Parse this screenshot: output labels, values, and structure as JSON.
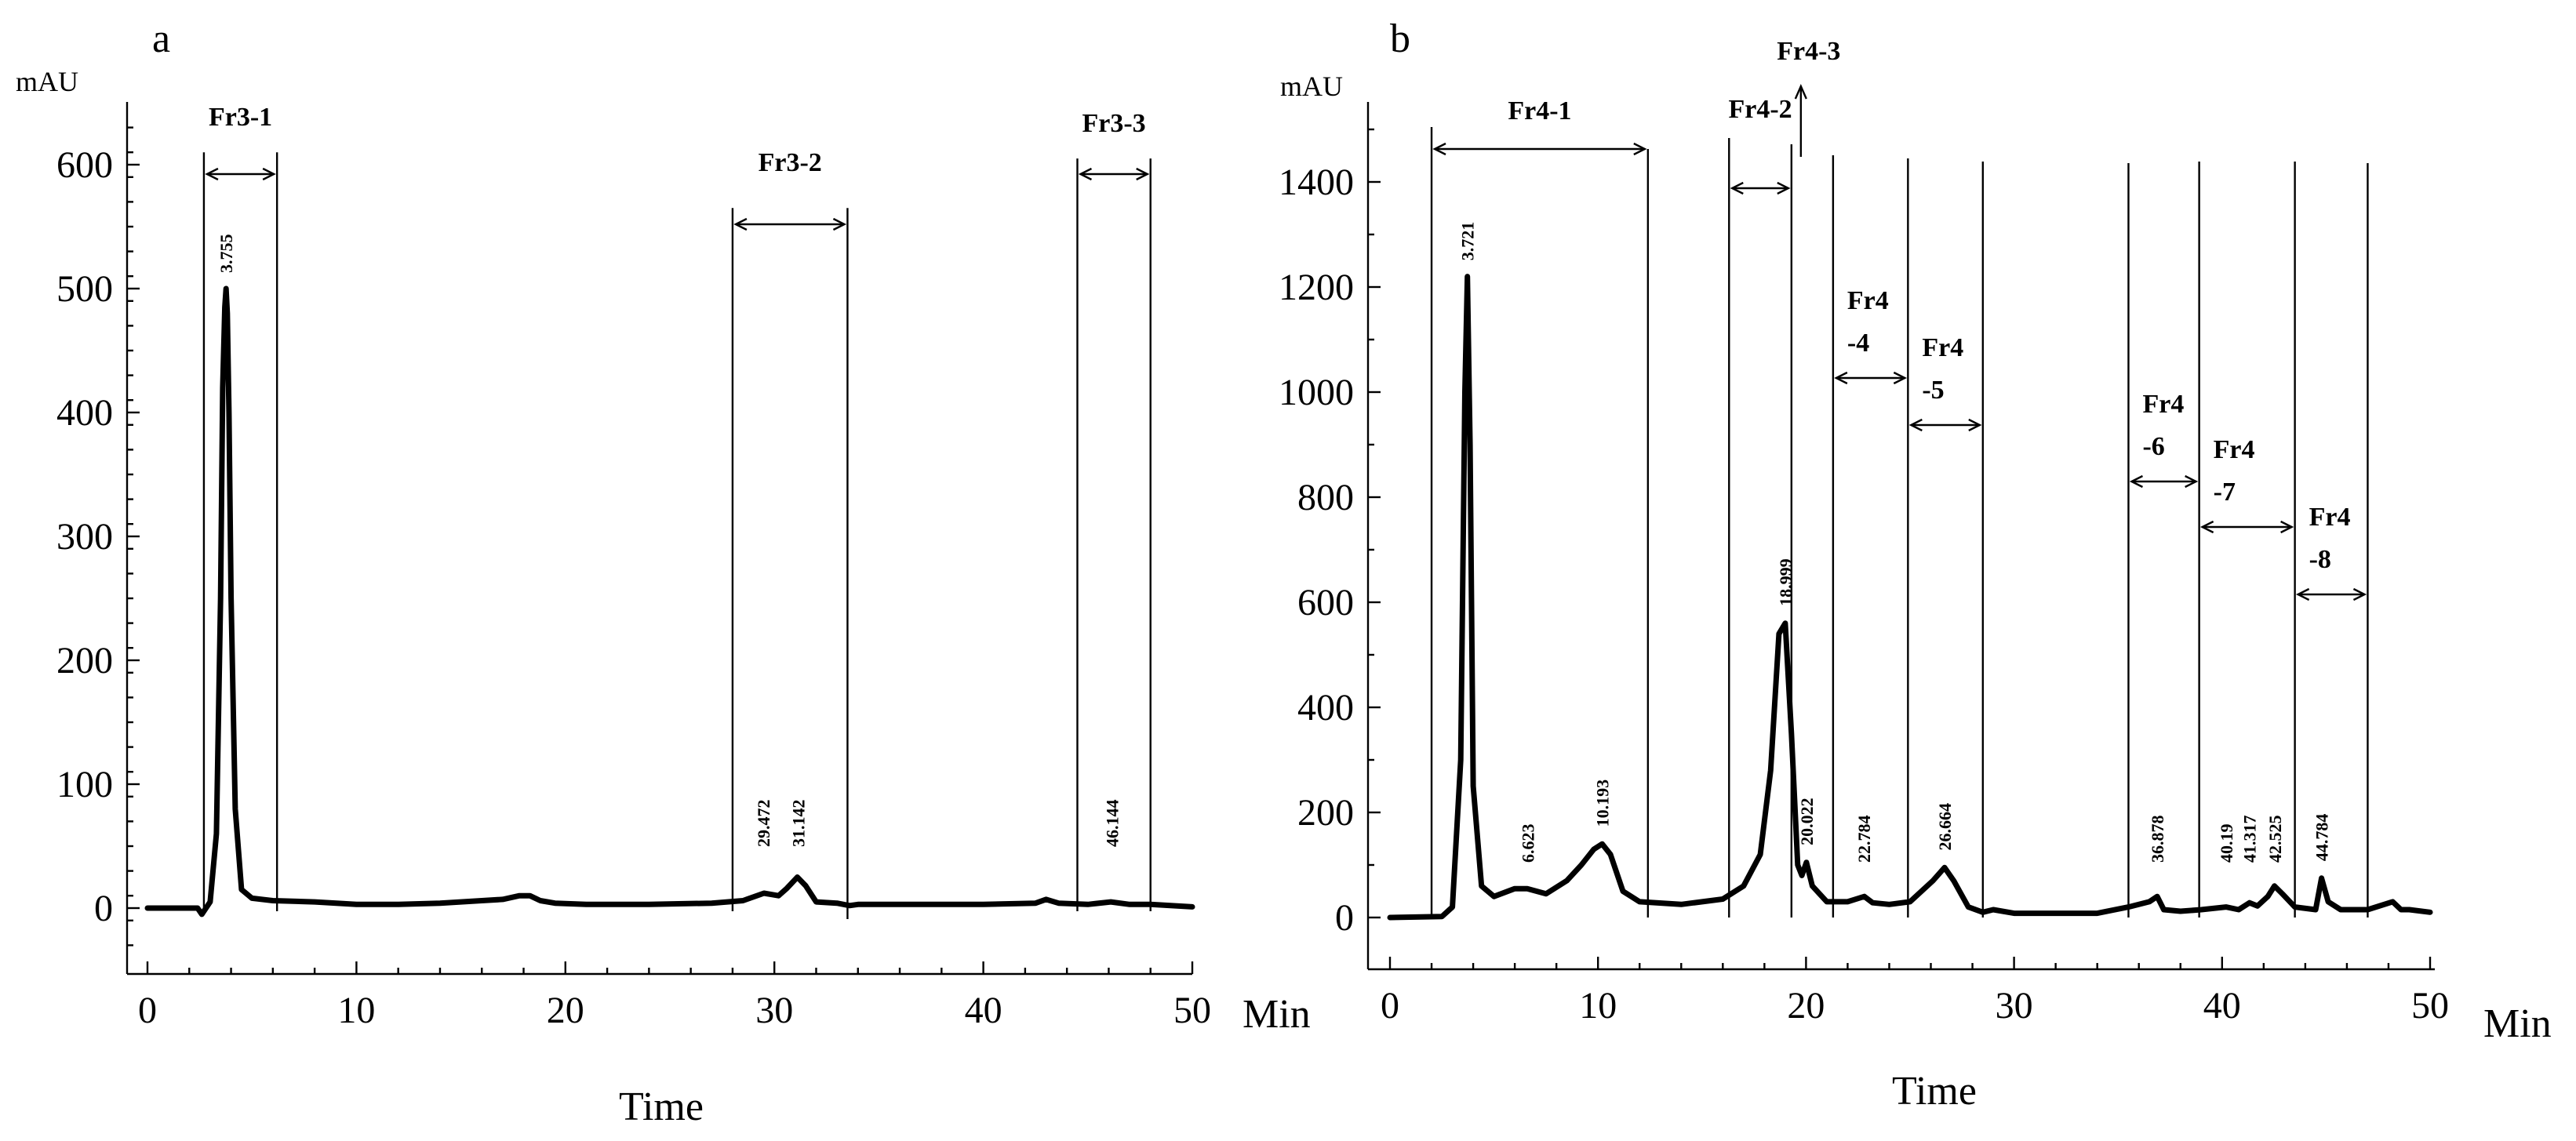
{
  "chart_data": [
    {
      "panel": "a",
      "type": "line",
      "xlabel": "Time",
      "xunit": "Min",
      "ylabel": "mAU",
      "xlim": [
        0,
        50
      ],
      "ylim": [
        -50,
        650
      ],
      "xticks": [
        0,
        10,
        20,
        30,
        40,
        50
      ],
      "yticks": [
        0,
        100,
        200,
        300,
        400,
        500,
        600
      ],
      "x": [
        0,
        2.4,
        2.6,
        3.0,
        3.3,
        3.5,
        3.6,
        3.7,
        3.76,
        3.82,
        3.9,
        4.0,
        4.2,
        4.5,
        5,
        6,
        8,
        10,
        12,
        14,
        16,
        17,
        17.8,
        18.3,
        18.8,
        19.5,
        21,
        24,
        27,
        28.5,
        29.5,
        30.2,
        30.6,
        31.1,
        31.5,
        32,
        33,
        33.6,
        34,
        40,
        42.5,
        43,
        43.6,
        45,
        46.1,
        47,
        48,
        50
      ],
      "y": [
        0,
        0,
        -5,
        5,
        60,
        250,
        420,
        485,
        500,
        480,
        400,
        250,
        80,
        15,
        8,
        6,
        5,
        3,
        3,
        4,
        6,
        7,
        10,
        10,
        6,
        4,
        3,
        3,
        4,
        6,
        12,
        10,
        16,
        25,
        18,
        5,
        4,
        2,
        3,
        3,
        4,
        7,
        4,
        3,
        5,
        3,
        3,
        1
      ],
      "peak_labels": [
        {
          "rt": 3.755,
          "text": "3.755"
        },
        {
          "rt": 29.472,
          "text": "29.472"
        },
        {
          "rt": 31.142,
          "text": "31.142"
        },
        {
          "rt": 46.144,
          "text": "46.144"
        }
      ],
      "fractions": [
        {
          "name": "Fr3-1",
          "start": 2.7,
          "end": 6.2,
          "line_top": 610
        },
        {
          "name": "Fr3-2",
          "start": 28.0,
          "end": 33.5,
          "line_top": 565
        },
        {
          "name": "Fr3-3",
          "start": 44.5,
          "end": 48.0,
          "line_top": 605
        }
      ]
    },
    {
      "panel": "b",
      "type": "line",
      "xlabel": "Time",
      "xunit": "Min",
      "ylabel": "mAU",
      "xlim": [
        0,
        50
      ],
      "ylim": [
        -100,
        1600
      ],
      "xticks": [
        0,
        10,
        20,
        30,
        40,
        50
      ],
      "yticks": [
        0,
        200,
        400,
        600,
        800,
        1000,
        1200,
        1400
      ],
      "x": [
        0,
        2.5,
        3.0,
        3.4,
        3.6,
        3.72,
        3.85,
        4.0,
        4.4,
        5.0,
        6.0,
        6.6,
        7.5,
        8.5,
        9.2,
        9.8,
        10.2,
        10.6,
        11.2,
        12,
        14,
        16,
        17,
        17.8,
        18.3,
        18.7,
        19.0,
        19.3,
        19.6,
        19.8,
        20.02,
        20.3,
        21,
        22,
        22.8,
        23.2,
        24,
        25,
        26.1,
        26.66,
        27.1,
        27.8,
        28.5,
        29,
        30,
        34,
        35.5,
        36.5,
        36.88,
        37.2,
        38,
        39,
        40.19,
        40.8,
        41.32,
        41.7,
        42.2,
        42.52,
        42.9,
        43.5,
        44.5,
        44.78,
        45.1,
        45.7,
        47,
        48.2,
        48.6,
        49,
        50
      ],
      "y": [
        0,
        2,
        20,
        300,
        1000,
        1220,
        900,
        250,
        60,
        40,
        55,
        55,
        45,
        70,
        100,
        130,
        140,
        120,
        50,
        30,
        25,
        35,
        60,
        120,
        280,
        540,
        560,
        350,
        100,
        80,
        105,
        60,
        30,
        30,
        40,
        28,
        25,
        30,
        70,
        95,
        70,
        20,
        10,
        15,
        8,
        8,
        20,
        30,
        40,
        15,
        12,
        15,
        20,
        15,
        28,
        22,
        40,
        60,
        45,
        20,
        15,
        75,
        30,
        15,
        15,
        30,
        15,
        15,
        10
      ],
      "peak_labels": [
        {
          "rt": 3.721,
          "text": "3.721"
        },
        {
          "rt": 6.623,
          "text": "6.623"
        },
        {
          "rt": 10.193,
          "text": "10.193"
        },
        {
          "rt": 18.999,
          "text": "18.999"
        },
        {
          "rt": 20.022,
          "text": "20.022"
        },
        {
          "rt": 22.784,
          "text": "22.784"
        },
        {
          "rt": 26.664,
          "text": "26.664"
        },
        {
          "rt": 36.878,
          "text": "36.878"
        },
        {
          "rt": 40.19,
          "text": "40.19"
        },
        {
          "rt": 41.317,
          "text": "41.317"
        },
        {
          "rt": 42.525,
          "text": "42.525"
        },
        {
          "rt": 44.784,
          "text": "44.784"
        }
      ],
      "fraction_bounds": [
        2.0,
        12.4,
        16.3,
        19.3,
        21.3,
        24.9,
        28.5,
        35.5,
        38.9,
        43.5,
        47.0
      ],
      "fractions": [
        {
          "name": "Fr4-1",
          "start": 2.0,
          "end": 12.4
        },
        {
          "name": "Fr4-2",
          "start": 16.3,
          "end": 19.3
        },
        {
          "name": "Fr4-3",
          "start": 19.3,
          "end": 21.3
        },
        {
          "name": "Fr4\n-4",
          "start": 21.3,
          "end": 24.9
        },
        {
          "name": "Fr4\n-5",
          "start": 24.9,
          "end": 28.5
        },
        {
          "name": "Fr4\n-6",
          "start": 35.5,
          "end": 38.9
        },
        {
          "name": "Fr4\n-7",
          "start": 38.9,
          "end": 43.5
        },
        {
          "name": "Fr4\n-8",
          "start": 43.5,
          "end": 47.0
        }
      ]
    }
  ]
}
